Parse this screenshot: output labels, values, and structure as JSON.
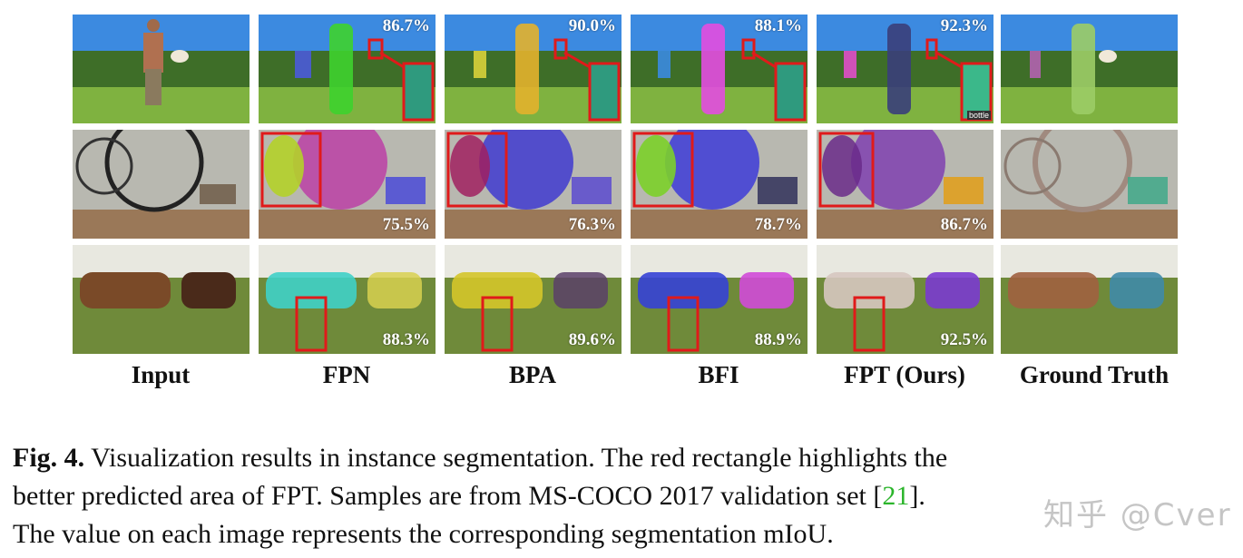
{
  "columns": [
    "Input",
    "FPN",
    "BPA",
    "BFI",
    "FPT (Ours)",
    "Ground Truth"
  ],
  "scores": {
    "row1": [
      "86.7%",
      "90.0%",
      "88.1%",
      "92.3%"
    ],
    "row2": [
      "75.5%",
      "76.3%",
      "78.7%",
      "86.7%"
    ],
    "row3": [
      "88.3%",
      "89.6%",
      "88.9%",
      "92.5%"
    ]
  },
  "label_bottle": "bottle",
  "colors": {
    "row1_fg": [
      "#3ed22e",
      "#e3b12c",
      "#e34de0",
      "#3a3e7a",
      "#9ccc66"
    ],
    "row2_fg": [
      "#bb3fa6",
      "#3f3ad0",
      "#3d3bd8",
      "#7f3fb0",
      "#a08a7f"
    ],
    "row3_fg": [
      "#3fd0c8",
      "#d4c52a",
      "#3541d6",
      "#d6c6c0",
      "#a06040"
    ],
    "highlight": "#e01a1a"
  },
  "caption": {
    "prefix": "Fig. 4.",
    "line1": " Visualization results in instance segmentation. The red rectangle highlights the",
    "line2": "better predicted area of FPT. Samples are from MS-COCO 2017 validation set [",
    "ref": "21",
    "line2_end": "].",
    "line3": "The value on each image represents the corresponding segmentation mIoU."
  },
  "watermark": "知乎 @Cver"
}
